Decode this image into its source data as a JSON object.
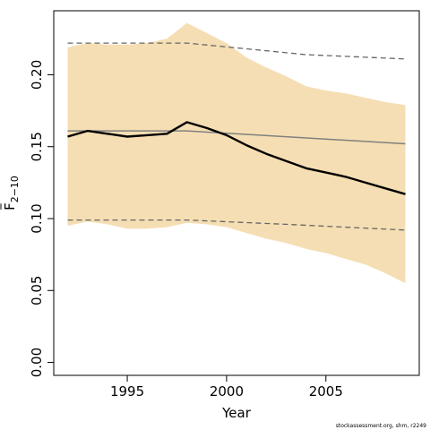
{
  "chart_data": {
    "type": "line",
    "xlabel": "Year",
    "ylabel": "F",
    "ylabel_subscript": "2−10",
    "xlim": [
      1991.3,
      2009.7
    ],
    "ylim": [
      -0.009,
      0.2445
    ],
    "xticks": [
      1995,
      2000,
      2005
    ],
    "yticks": [
      0.0,
      0.05,
      0.1,
      0.15,
      0.2
    ],
    "ytick_labels": [
      "0.00",
      "0.05",
      "0.10",
      "0.15",
      "0.20"
    ],
    "grid": false,
    "legend": "none",
    "colors": {
      "band": "#f5deb3",
      "estimate": "#000000",
      "reference": "#808080",
      "reference_bounds": "#666666"
    },
    "series": [
      {
        "role": "confidence-band",
        "x": [
          1992,
          1993,
          1994,
          1995,
          1996,
          1997,
          1998,
          1999,
          2000,
          2001,
          2002,
          2003,
          2004,
          2005,
          2006,
          2007,
          2008,
          2009
        ],
        "upper": [
          0.219,
          0.222,
          0.221,
          0.221,
          0.222,
          0.225,
          0.236,
          0.229,
          0.222,
          0.212,
          0.205,
          0.199,
          0.192,
          0.189,
          0.187,
          0.184,
          0.181,
          0.179
        ],
        "lower": [
          0.095,
          0.098,
          0.096,
          0.093,
          0.093,
          0.094,
          0.097,
          0.096,
          0.094,
          0.09,
          0.086,
          0.083,
          0.079,
          0.076,
          0.072,
          0.068,
          0.062,
          0.055
        ]
      },
      {
        "role": "estimate",
        "x": [
          1992,
          1993,
          1994,
          1995,
          1996,
          1997,
          1998,
          1999,
          2000,
          2001,
          2002,
          2003,
          2004,
          2005,
          2006,
          2007,
          2008,
          2009
        ],
        "values": [
          0.157,
          0.161,
          0.159,
          0.157,
          0.158,
          0.159,
          0.167,
          0.163,
          0.158,
          0.151,
          0.145,
          0.14,
          0.135,
          0.132,
          0.129,
          0.125,
          0.121,
          0.117
        ]
      },
      {
        "role": "reference-mean",
        "x": [
          1992,
          1998,
          2009
        ],
        "values": [
          0.161,
          0.161,
          0.152
        ]
      },
      {
        "role": "reference-upper",
        "x": [
          1992,
          1998,
          2001,
          2004,
          2009
        ],
        "values": [
          0.222,
          0.222,
          0.218,
          0.214,
          0.211
        ]
      },
      {
        "role": "reference-lower",
        "x": [
          1992,
          1998,
          2003,
          2009
        ],
        "values": [
          0.099,
          0.099,
          0.096,
          0.092
        ]
      }
    ]
  },
  "footer": "stockassessment.org, shm, r2249"
}
